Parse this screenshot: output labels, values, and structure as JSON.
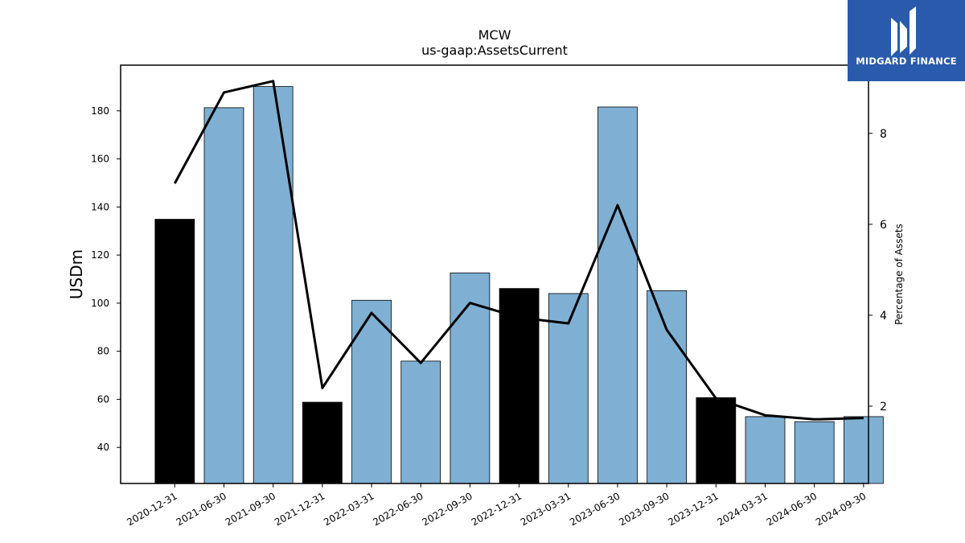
{
  "brand": {
    "name": "MIDGARD FINANCE",
    "bg_color": "#2a5aab"
  },
  "chart_data": {
    "type": "bar",
    "title": "MCW",
    "subtitle": "us-gaap:AssetsCurrent",
    "ylabel": "USDm",
    "y2label": "Percentage of Assets",
    "ylim": [
      25,
      199
    ],
    "y2lim": [
      0.3,
      9.5
    ],
    "yticks": [
      40,
      60,
      80,
      100,
      120,
      140,
      160,
      180
    ],
    "y2ticks": [
      2,
      4,
      6,
      8
    ],
    "grid": false,
    "categories": [
      "2020-12-31",
      "2021-06-30",
      "2021-09-30",
      "2021-12-31",
      "2022-03-31",
      "2022-06-30",
      "2022-09-30",
      "2022-12-31",
      "2023-03-31",
      "2023-06-30",
      "2023-09-30",
      "2023-12-31",
      "2024-03-31",
      "2024-06-30",
      "2024-09-30"
    ],
    "series": [
      {
        "kind": "bar",
        "axis": "left",
        "values": [
          134.9,
          181.3,
          190.1,
          58.8,
          101.2,
          75.9,
          112.6,
          106.1,
          104.0,
          181.6,
          105.2,
          60.7,
          52.8,
          50.7,
          52.8
        ],
        "highlight": [
          true,
          false,
          false,
          true,
          false,
          false,
          false,
          true,
          false,
          false,
          false,
          true,
          false,
          false,
          false
        ],
        "colors": {
          "normal": "#7fb0d4",
          "highlight": "#000000",
          "edge": "#000000"
        }
      },
      {
        "kind": "line",
        "axis": "right",
        "values": [
          6.9,
          8.9,
          9.15,
          2.4,
          4.05,
          2.95,
          4.27,
          3.95,
          3.82,
          6.42,
          3.68,
          2.17,
          1.8,
          1.71,
          1.74
        ],
        "color": "#000000"
      }
    ]
  }
}
